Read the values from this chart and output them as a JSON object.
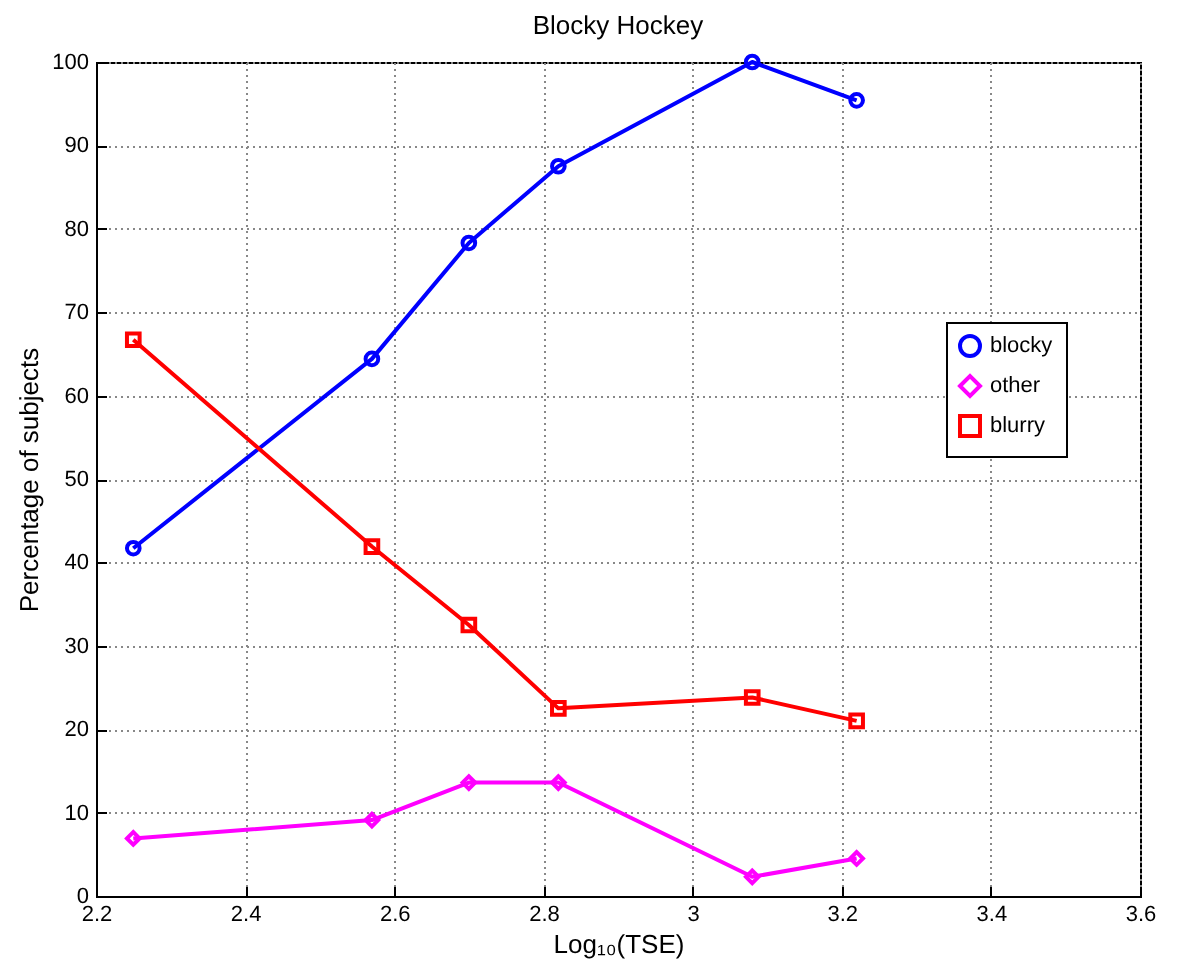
{
  "chart_data": {
    "type": "line",
    "title": "Blocky Hockey",
    "xlabel": "Log₁₀(TSE)",
    "ylabel": "Percentage of subjects",
    "x": [
      2.25,
      2.57,
      2.7,
      2.82,
      3.08,
      3.22
    ],
    "series": [
      {
        "name": "blocky",
        "color": "#0000ff",
        "marker": "circle",
        "values": [
          41.7,
          64.4,
          78.3,
          87.5,
          100,
          95.4
        ]
      },
      {
        "name": "other",
        "color": "#ff00ff",
        "marker": "diamond",
        "values": [
          6.9,
          9.1,
          13.6,
          13.6,
          2.3,
          4.5
        ]
      },
      {
        "name": "blurry",
        "color": "#ff0000",
        "marker": "square",
        "values": [
          66.7,
          41.9,
          32.5,
          22.5,
          23.8,
          21.0
        ]
      }
    ],
    "xlim": [
      2.2,
      3.6
    ],
    "xticks": [
      2.2,
      2.4,
      2.6,
      2.8,
      3,
      3.2,
      3.4,
      3.6
    ],
    "ylim": [
      0,
      100
    ],
    "yticks": [
      0,
      10,
      20,
      30,
      40,
      50,
      60,
      70,
      80,
      90,
      100
    ],
    "grid": true,
    "legend": "right",
    "line_style": "solid"
  }
}
